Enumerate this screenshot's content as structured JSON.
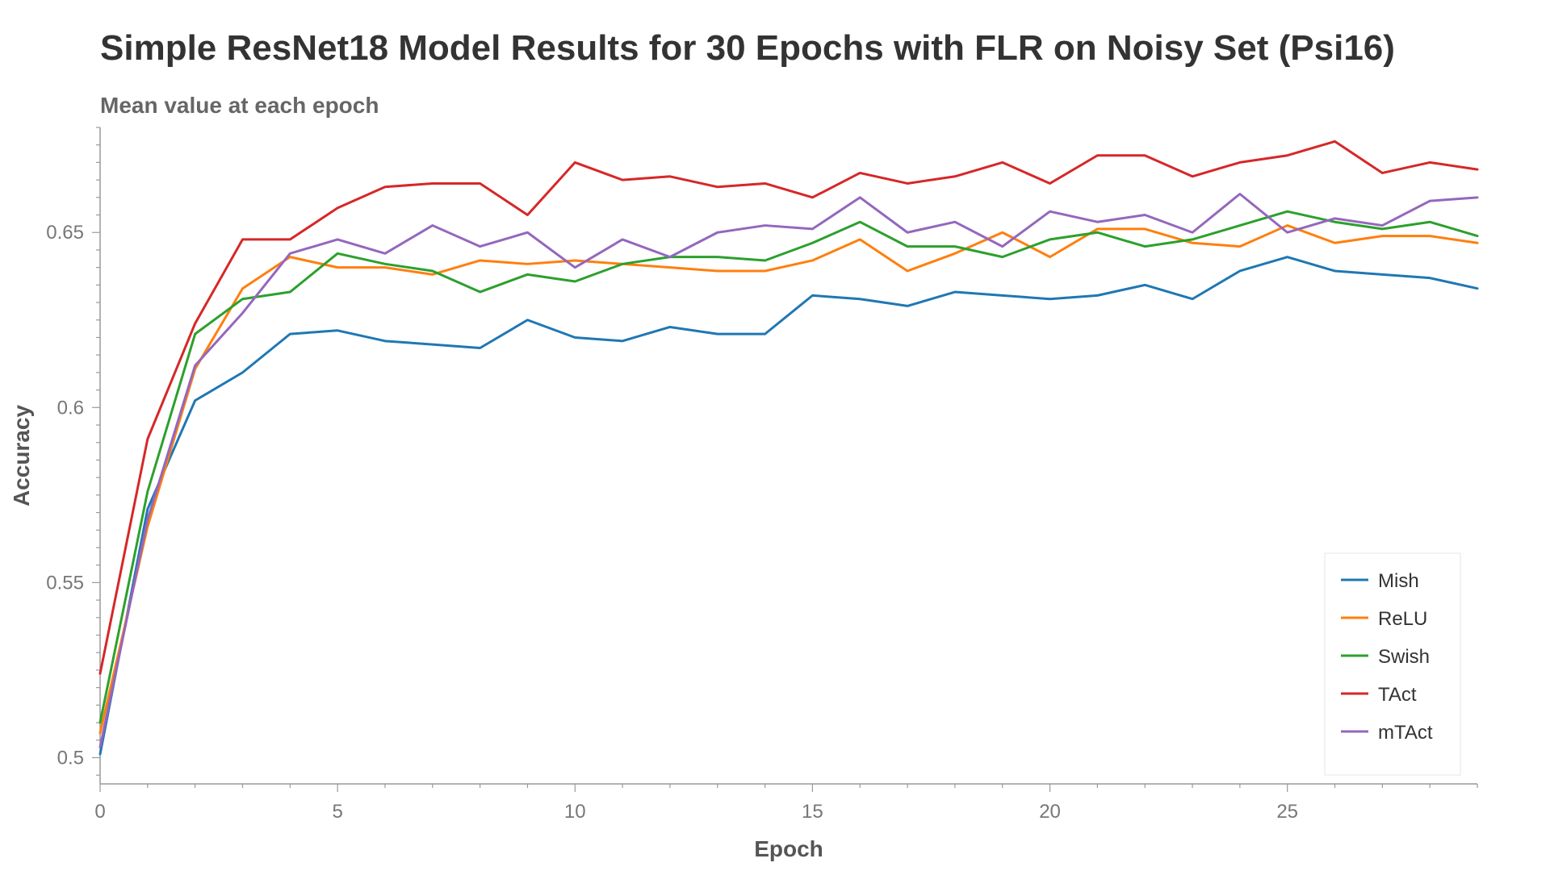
{
  "chart_data": {
    "type": "line",
    "title": "Simple ResNet18 Model Results for 30 Epochs with FLR on Noisy Set (Psi16)",
    "subtitle": "Mean value at each epoch",
    "xlabel": "Epoch",
    "ylabel": "Accuracy",
    "xlim": [
      0,
      29
    ],
    "ylim": [
      0.4925,
      0.68
    ],
    "x_ticks": [
      0,
      5,
      10,
      15,
      20,
      25
    ],
    "x_tick_labels": [
      "0",
      "5",
      "10",
      "15",
      "20",
      "25"
    ],
    "y_ticks": [
      0.5,
      0.55,
      0.6,
      0.65
    ],
    "y_tick_labels": [
      "0.5",
      "0.55",
      "0.6",
      "0.65"
    ],
    "grid": false,
    "legend_position": "bottom-right",
    "x": [
      0,
      1,
      2,
      3,
      4,
      5,
      6,
      7,
      8,
      9,
      10,
      11,
      12,
      13,
      14,
      15,
      16,
      17,
      18,
      19,
      20,
      21,
      22,
      23,
      24,
      25,
      26,
      27,
      28,
      29
    ],
    "series": [
      {
        "name": "Mish",
        "color": "#1f77b4",
        "values": [
          0.501,
          0.571,
          0.602,
          0.61,
          0.621,
          0.622,
          0.619,
          0.618,
          0.617,
          0.625,
          0.62,
          0.619,
          0.623,
          0.621,
          0.621,
          0.632,
          0.631,
          0.629,
          0.633,
          0.632,
          0.631,
          0.632,
          0.635,
          0.631,
          0.639,
          0.643,
          0.639,
          0.638,
          0.637,
          0.634
        ]
      },
      {
        "name": "ReLU",
        "color": "#ff7f0e",
        "values": [
          0.507,
          0.566,
          0.611,
          0.634,
          0.643,
          0.64,
          0.64,
          0.638,
          0.642,
          0.641,
          0.642,
          0.641,
          0.64,
          0.639,
          0.639,
          0.642,
          0.648,
          0.639,
          0.644,
          0.65,
          0.643,
          0.651,
          0.651,
          0.647,
          0.646,
          0.652,
          0.647,
          0.649,
          0.649,
          0.647
        ]
      },
      {
        "name": "Swish",
        "color": "#2ca02c",
        "values": [
          0.51,
          0.576,
          0.621,
          0.631,
          0.633,
          0.644,
          0.641,
          0.639,
          0.633,
          0.638,
          0.636,
          0.641,
          0.643,
          0.643,
          0.642,
          0.647,
          0.653,
          0.646,
          0.646,
          0.643,
          0.648,
          0.65,
          0.646,
          0.648,
          0.652,
          0.656,
          0.653,
          0.651,
          0.653,
          0.649
        ]
      },
      {
        "name": "TAct",
        "color": "#d62728",
        "values": [
          0.524,
          0.591,
          0.624,
          0.648,
          0.648,
          0.657,
          0.663,
          0.664,
          0.664,
          0.655,
          0.67,
          0.665,
          0.666,
          0.663,
          0.664,
          0.66,
          0.667,
          0.664,
          0.666,
          0.67,
          0.664,
          0.672,
          0.672,
          0.666,
          0.67,
          0.672,
          0.676,
          0.667,
          0.67,
          0.668
        ]
      },
      {
        "name": "mTAct",
        "color": "#9467bd",
        "values": [
          0.503,
          0.568,
          0.612,
          0.627,
          0.644,
          0.648,
          0.644,
          0.652,
          0.646,
          0.65,
          0.64,
          0.648,
          0.643,
          0.65,
          0.652,
          0.651,
          0.66,
          0.65,
          0.653,
          0.646,
          0.656,
          0.653,
          0.655,
          0.65,
          0.661,
          0.65,
          0.654,
          0.652,
          0.659,
          0.66
        ]
      }
    ]
  }
}
